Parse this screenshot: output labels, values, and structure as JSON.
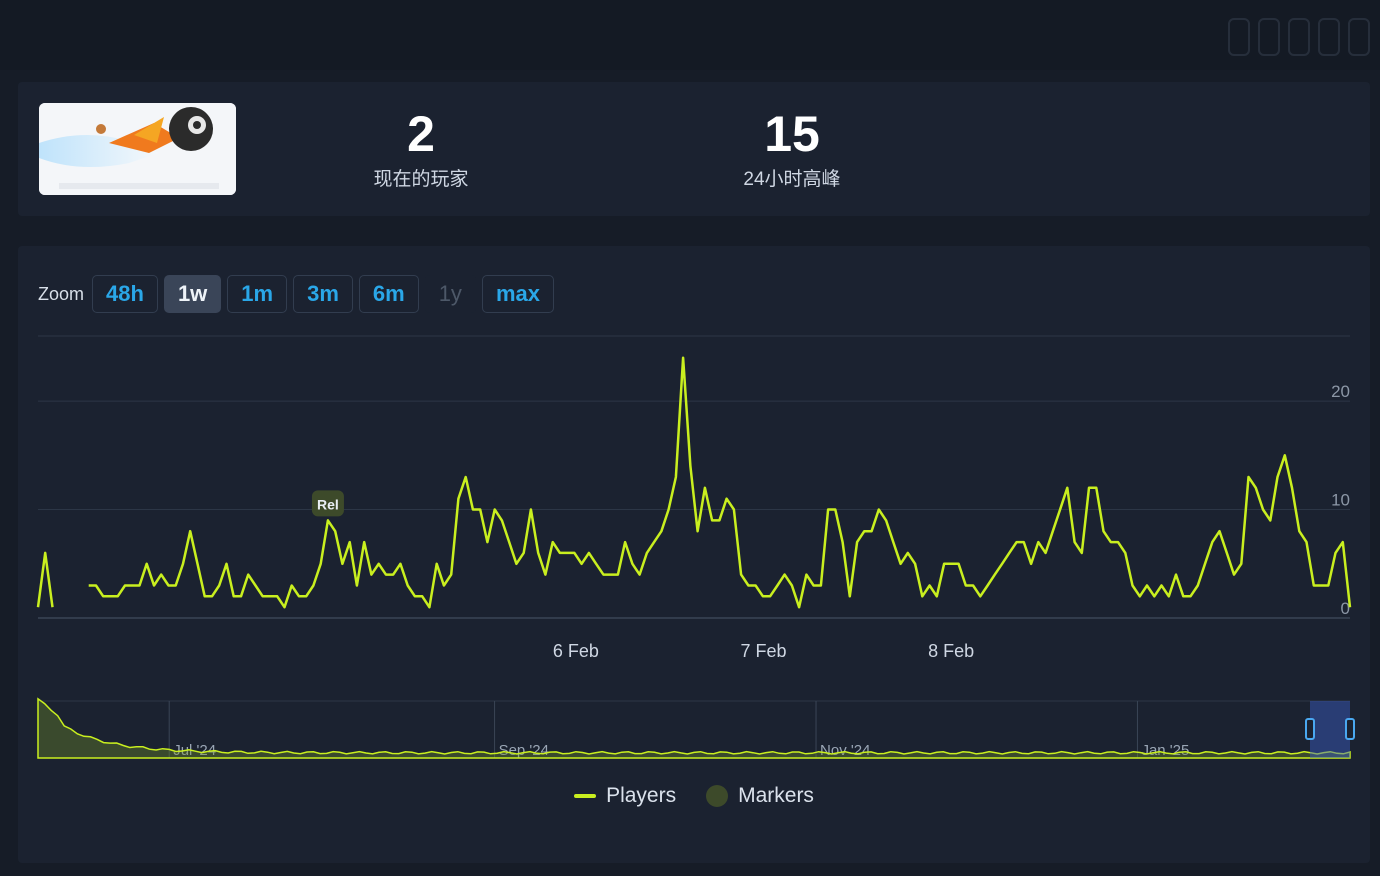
{
  "stats": [
    {
      "value": "2",
      "label": "现在的玩家"
    },
    {
      "value": "15",
      "label": "24小时高峰"
    }
  ],
  "zoom": {
    "label": "Zoom",
    "buttons": [
      {
        "label": "48h",
        "state": "normal"
      },
      {
        "label": "1w",
        "state": "active"
      },
      {
        "label": "1m",
        "state": "normal"
      },
      {
        "label": "3m",
        "state": "normal"
      },
      {
        "label": "6m",
        "state": "normal"
      },
      {
        "label": "1y",
        "state": "disabled"
      },
      {
        "label": "max",
        "state": "normal"
      }
    ]
  },
  "legend": {
    "players": "Players",
    "markers": "Markers"
  },
  "colors": {
    "line": "#c9ef1f",
    "accent": "#2aa7e8",
    "marker": "#3d4a2a"
  },
  "chart_data": {
    "type": "line",
    "y_ticks": [
      "0",
      "10",
      "20"
    ],
    "ylim": [
      0,
      26
    ],
    "x_ticks": [
      "6 Feb",
      "7 Feb",
      "8 Feb"
    ],
    "marker_label": "Rel",
    "series": [
      {
        "name": "Players",
        "values": [
          1,
          6,
          1,
          null,
          null,
          null,
          null,
          3,
          3,
          2,
          2,
          2,
          3,
          3,
          3,
          5,
          3,
          4,
          3,
          3,
          5,
          8,
          5,
          2,
          2,
          3,
          5,
          2,
          2,
          4,
          3,
          2,
          2,
          2,
          1,
          3,
          2,
          2,
          3,
          5,
          9,
          8,
          5,
          7,
          3,
          7,
          4,
          5,
          4,
          4,
          5,
          3,
          2,
          2,
          1,
          5,
          3,
          4,
          11,
          13,
          10,
          10,
          7,
          10,
          9,
          7,
          5,
          6,
          10,
          6,
          4,
          7,
          6,
          6,
          6,
          5,
          6,
          5,
          4,
          4,
          4,
          7,
          5,
          4,
          6,
          7,
          8,
          10,
          13,
          24,
          14,
          8,
          12,
          9,
          9,
          11,
          10,
          4,
          3,
          3,
          2,
          2,
          3,
          4,
          3,
          1,
          4,
          3,
          3,
          10,
          10,
          7,
          2,
          7,
          8,
          8,
          10,
          9,
          7,
          5,
          6,
          5,
          2,
          3,
          2,
          5,
          5,
          5,
          3,
          3,
          2,
          3,
          4,
          5,
          6,
          7,
          7,
          5,
          7,
          6,
          8,
          10,
          12,
          7,
          6,
          12,
          12,
          8,
          7,
          7,
          6,
          3,
          2,
          3,
          2,
          3,
          2,
          4,
          2,
          2,
          3,
          5,
          7,
          8,
          6,
          4,
          5,
          13,
          12,
          10,
          9,
          13,
          15,
          12,
          8,
          7,
          3,
          3,
          3,
          6,
          7,
          1
        ]
      }
    ],
    "navigator": {
      "x_ticks": [
        "Jul '24",
        "Sep '24",
        "Nov '24",
        "Jan '25"
      ]
    }
  }
}
